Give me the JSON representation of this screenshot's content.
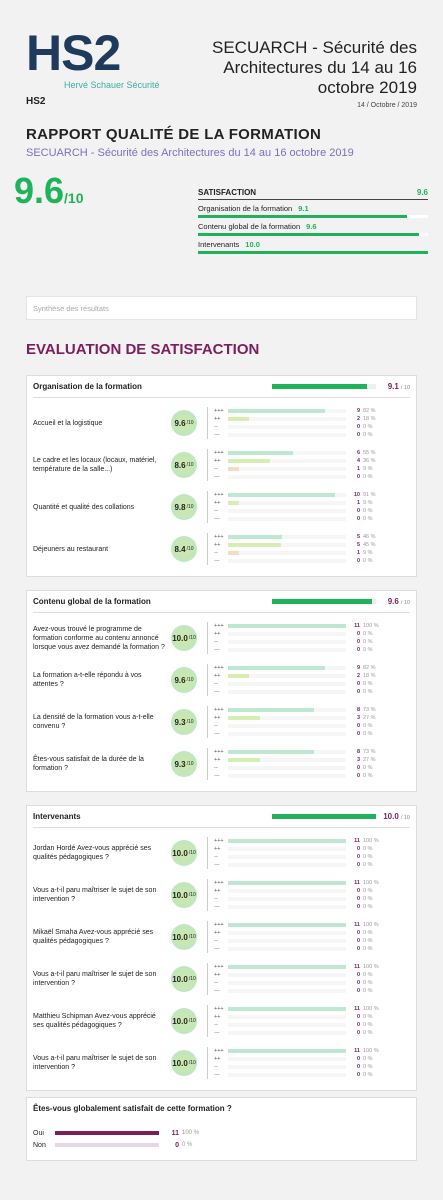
{
  "header": {
    "logo": "HS2",
    "logo_tagline": "Hervé Schauer Sécurité",
    "company": "HS2",
    "title": "SECUARCH - Sécurité des Architectures du 14 au 16 octobre 2019",
    "date": "14 / Octobre / 2019"
  },
  "report": {
    "title": "RAPPORT QUALITÉ DE LA FORMATION",
    "subtitle": "SECUARCH - Sécurité des Architectures du 14 au 16 octobre 2019",
    "score": 9.6,
    "score_suffix": "/10"
  },
  "summary": {
    "title": "SATISFACTION",
    "value": 9.6,
    "rows": [
      {
        "label": "Organisation de la formation",
        "value": {
          "value": 9.1,
          "label": "9.1"
        }
      },
      {
        "label": "Contenu global de la formation",
        "value": {
          "value": 9.6,
          "label": "9.6"
        }
      },
      {
        "label": "Intervenants",
        "value": {
          "value": 10,
          "label": "10.0"
        }
      }
    ]
  },
  "synthesis": "Synthèse des résultats",
  "section_title": "EVALUATION DE SATISFACTION",
  "levels": [
    "+++",
    "++",
    "--",
    "---"
  ],
  "question_scale": "/10",
  "group_scale": "/ 10",
  "groups": [
    {
      "title": "Organisation de la formation",
      "score": {
        "value": 9.1,
        "label": "9.1"
      },
      "questions": [
        {
          "text": "Accueil et la logistique",
          "score": "9.6",
          "answers": [
            {
              "count": 9,
              "pct": {
                "value": 82,
                "label": "82 %"
              }
            },
            {
              "count": 2,
              "pct": {
                "value": 18,
                "label": "18 %"
              }
            },
            {
              "count": 0,
              "pct": {
                "value": 0,
                "label": "0 %"
              }
            },
            {
              "count": 0,
              "pct": {
                "value": 0,
                "label": "0 %"
              }
            }
          ]
        },
        {
          "text": "Le cadre et les locaux (locaux, matériel, température de la salle...)",
          "score": "8.6",
          "answers": [
            {
              "count": 6,
              "pct": {
                "value": 55,
                "label": "55 %"
              }
            },
            {
              "count": 4,
              "pct": {
                "value": 36,
                "label": "36 %"
              }
            },
            {
              "count": 1,
              "pct": {
                "value": 9,
                "label": "9 %"
              }
            },
            {
              "count": 0,
              "pct": {
                "value": 0,
                "label": "0 %"
              }
            }
          ]
        },
        {
          "text": "Quantité et qualité des collations",
          "score": "9.8",
          "answers": [
            {
              "count": 10,
              "pct": {
                "value": 91,
                "label": "91 %"
              }
            },
            {
              "count": 1,
              "pct": {
                "value": 9,
                "label": "9 %"
              }
            },
            {
              "count": 0,
              "pct": {
                "value": 0,
                "label": "0 %"
              }
            },
            {
              "count": 0,
              "pct": {
                "value": 0,
                "label": "0 %"
              }
            }
          ]
        },
        {
          "text": "Déjeuners au restaurant",
          "score": "8.4",
          "answers": [
            {
              "count": 5,
              "pct": {
                "value": 46,
                "label": "46 %"
              }
            },
            {
              "count": 5,
              "pct": {
                "value": 45,
                "label": "45 %"
              }
            },
            {
              "count": 1,
              "pct": {
                "value": 9,
                "label": "9 %"
              }
            },
            {
              "count": 0,
              "pct": {
                "value": 0,
                "label": "0 %"
              }
            }
          ]
        }
      ]
    },
    {
      "title": "Contenu global de la formation",
      "score": {
        "value": 9.6,
        "label": "9.6"
      },
      "questions": [
        {
          "text": "Avez-vous trouvé le programme de formation conforme au contenu annoncé lorsque vous avez demandé la formation ?",
          "score": "10.0",
          "answers": [
            {
              "count": 11,
              "pct": {
                "value": 100,
                "label": "100 %"
              }
            },
            {
              "count": 0,
              "pct": {
                "value": 0,
                "label": "0 %"
              }
            },
            {
              "count": 0,
              "pct": {
                "value": 0,
                "label": "0 %"
              }
            },
            {
              "count": 0,
              "pct": {
                "value": 0,
                "label": "0 %"
              }
            }
          ]
        },
        {
          "text": "La formation a-t-elle répondu à vos attentes ?",
          "score": "9.6",
          "answers": [
            {
              "count": 9,
              "pct": {
                "value": 82,
                "label": "82 %"
              }
            },
            {
              "count": 2,
              "pct": {
                "value": 18,
                "label": "18 %"
              }
            },
            {
              "count": 0,
              "pct": {
                "value": 0,
                "label": "0 %"
              }
            },
            {
              "count": 0,
              "pct": {
                "value": 0,
                "label": "0 %"
              }
            }
          ]
        },
        {
          "text": "La densité de la formation vous a-t-elle convenu ?",
          "score": "9.3",
          "answers": [
            {
              "count": 8,
              "pct": {
                "value": 73,
                "label": "73 %"
              }
            },
            {
              "count": 3,
              "pct": {
                "value": 27,
                "label": "27 %"
              }
            },
            {
              "count": 0,
              "pct": {
                "value": 0,
                "label": "0 %"
              }
            },
            {
              "count": 0,
              "pct": {
                "value": 0,
                "label": "0 %"
              }
            }
          ]
        },
        {
          "text": "Êtes-vous satisfait de la durée de la formation ?",
          "score": "9.3",
          "answers": [
            {
              "count": 8,
              "pct": {
                "value": 73,
                "label": "73 %"
              }
            },
            {
              "count": 3,
              "pct": {
                "value": 27,
                "label": "27 %"
              }
            },
            {
              "count": 0,
              "pct": {
                "value": 0,
                "label": "0 %"
              }
            },
            {
              "count": 0,
              "pct": {
                "value": 0,
                "label": "0 %"
              }
            }
          ]
        }
      ]
    },
    {
      "title": "Intervenants",
      "score": {
        "value": 10,
        "label": "10.0"
      },
      "questions": [
        {
          "text": "Jordan Hordé Avez-vous apprécié ses qualités pédagogiques ?",
          "score": "10.0",
          "answers": [
            {
              "count": 11,
              "pct": {
                "value": 100,
                "label": "100 %"
              }
            },
            {
              "count": 0,
              "pct": {
                "value": 0,
                "label": "0 %"
              }
            },
            {
              "count": 0,
              "pct": {
                "value": 0,
                "label": "0 %"
              }
            },
            {
              "count": 0,
              "pct": {
                "value": 0,
                "label": "0 %"
              }
            }
          ]
        },
        {
          "text": "Vous a-t-il paru maîtriser le sujet de son intervention ?",
          "score": "10.0",
          "answers": [
            {
              "count": 11,
              "pct": {
                "value": 100,
                "label": "100 %"
              }
            },
            {
              "count": 0,
              "pct": {
                "value": 0,
                "label": "0 %"
              }
            },
            {
              "count": 0,
              "pct": {
                "value": 0,
                "label": "0 %"
              }
            },
            {
              "count": 0,
              "pct": {
                "value": 0,
                "label": "0 %"
              }
            }
          ]
        },
        {
          "text": "Mikaël Smaha Avez-vous apprécié ses qualités pédagogiques ?",
          "score": "10.0",
          "answers": [
            {
              "count": 11,
              "pct": {
                "value": 100,
                "label": "100 %"
              }
            },
            {
              "count": 0,
              "pct": {
                "value": 0,
                "label": "0 %"
              }
            },
            {
              "count": 0,
              "pct": {
                "value": 0,
                "label": "0 %"
              }
            },
            {
              "count": 0,
              "pct": {
                "value": 0,
                "label": "0 %"
              }
            }
          ]
        },
        {
          "text": "Vous a-t-il paru maîtriser le sujet de son intervention ?",
          "score": "10.0",
          "answers": [
            {
              "count": 11,
              "pct": {
                "value": 100,
                "label": "100 %"
              }
            },
            {
              "count": 0,
              "pct": {
                "value": 0,
                "label": "0 %"
              }
            },
            {
              "count": 0,
              "pct": {
                "value": 0,
                "label": "0 %"
              }
            },
            {
              "count": 0,
              "pct": {
                "value": 0,
                "label": "0 %"
              }
            }
          ]
        },
        {
          "text": "Matthieu Schipman Avez-vous apprécié ses qualités pédagogiques ?",
          "score": "10.0",
          "answers": [
            {
              "count": 11,
              "pct": {
                "value": 100,
                "label": "100 %"
              }
            },
            {
              "count": 0,
              "pct": {
                "value": 0,
                "label": "0 %"
              }
            },
            {
              "count": 0,
              "pct": {
                "value": 0,
                "label": "0 %"
              }
            },
            {
              "count": 0,
              "pct": {
                "value": 0,
                "label": "0 %"
              }
            }
          ]
        },
        {
          "text": "Vous a-t-il paru maîtriser le sujet de son intervention ?",
          "score": "10.0",
          "answers": [
            {
              "count": 11,
              "pct": {
                "value": 100,
                "label": "100 %"
              }
            },
            {
              "count": 0,
              "pct": {
                "value": 0,
                "label": "0 %"
              }
            },
            {
              "count": 0,
              "pct": {
                "value": 0,
                "label": "0 %"
              }
            },
            {
              "count": 0,
              "pct": {
                "value": 0,
                "label": "0 %"
              }
            }
          ]
        }
      ]
    }
  ],
  "final": {
    "question": "Êtes-vous globalement satisfait de cette formation ?",
    "options": [
      {
        "label": "Oui",
        "count": 11,
        "pct": {
          "value": 100,
          "label": "100 %"
        }
      },
      {
        "label": "Non",
        "count": 0,
        "pct": {
          "value": 0,
          "label": "0 %"
        }
      }
    ]
  }
}
